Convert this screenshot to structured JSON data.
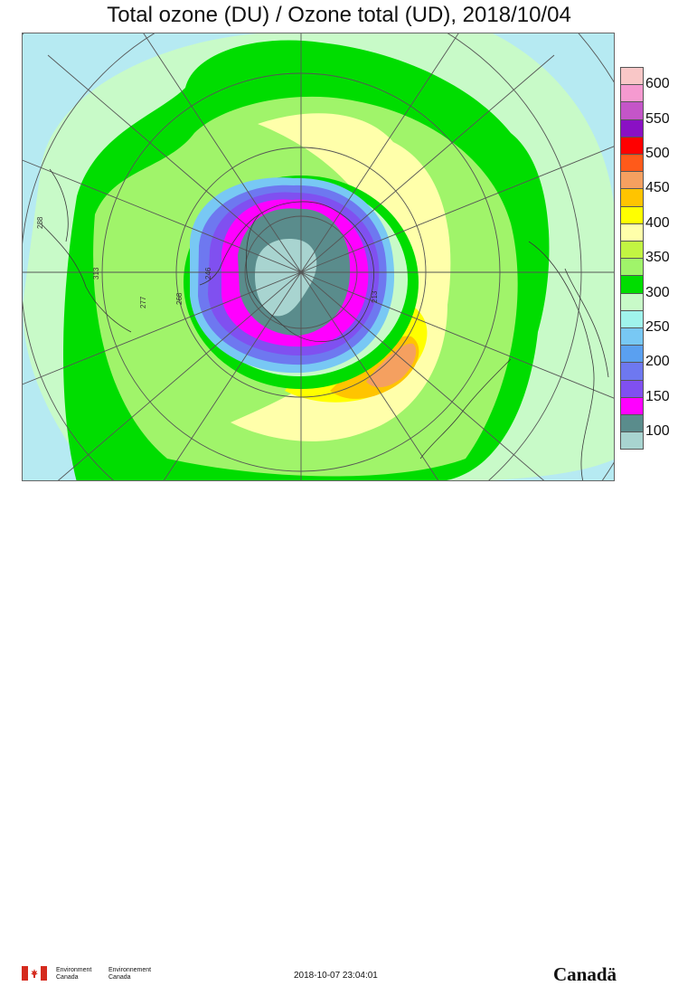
{
  "title": "Total ozone (DU) / Ozone total (UD), 2018/10/04",
  "legend": {
    "labels": [
      "600",
      "550",
      "500",
      "450",
      "400",
      "350",
      "300",
      "250",
      "200",
      "150",
      "100"
    ],
    "bins": [
      {
        "color": "#f9c7c7"
      },
      {
        "color": "#f59ad0"
      },
      {
        "color": "#c455c8"
      },
      {
        "color": "#8a10c4"
      },
      {
        "color": "#ff0000"
      },
      {
        "color": "#ff5a1a"
      },
      {
        "color": "#f5a060"
      },
      {
        "color": "#ffc400"
      },
      {
        "color": "#ffff00"
      },
      {
        "color": "#ffffaa"
      },
      {
        "color": "#c2f542"
      },
      {
        "color": "#a0f46a"
      },
      {
        "color": "#00dd00"
      },
      {
        "color": "#c8fac8"
      },
      {
        "color": "#a0f4ec"
      },
      {
        "color": "#78c8f4"
      },
      {
        "color": "#5aa0f0"
      },
      {
        "color": "#6e78f0"
      },
      {
        "color": "#8050f0"
      },
      {
        "color": "#ff00ff"
      },
      {
        "color": "#5a8c8c"
      },
      {
        "color": "#a8d4d0"
      }
    ]
  },
  "map": {
    "projection": "south-polar-stereographic",
    "station_labels": [
      "288",
      "313",
      "277",
      "268",
      "246",
      "213"
    ],
    "colors": {
      "background": "#b6eaf2",
      "outer_green": "#00dd00",
      "pale_green": "#c8fac8",
      "light_green": "#a0f46a",
      "yellow_pale": "#ffffaa",
      "yellow": "#ffff00",
      "orange": "#ffc400",
      "peach": "#f5a060",
      "hole_core": "#a8d4d0",
      "hole_teal": "#5a8c8c",
      "hole_magenta": "#ff00ff",
      "hole_purple": "#8050f0",
      "hole_blue": "#6e78f0",
      "hole_lightblue": "#78c8f4",
      "graticule": "#555555",
      "coastline": "#3a3a3a"
    }
  },
  "footer": {
    "dept_en_line1": "Environment",
    "dept_en_line2": "Canada",
    "dept_fr_line1": "Environnement",
    "dept_fr_line2": "Canada",
    "timestamp": "2018-10-07 23:04:01",
    "wordmark": "Canadä"
  }
}
